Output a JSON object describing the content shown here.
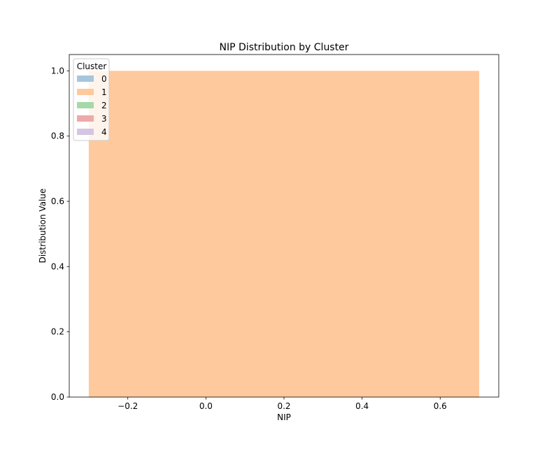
{
  "chart_data": {
    "type": "bar",
    "title": "NIP Distribution by Cluster",
    "xlabel": "NIP",
    "ylabel": "Distribution Value",
    "xlim": [
      -0.35,
      0.75
    ],
    "ylim": [
      0,
      1.05
    ],
    "xticks": [
      -0.2,
      0.0,
      0.2,
      0.4,
      0.6
    ],
    "xtick_labels": [
      "−0.2",
      "0.0",
      "0.2",
      "0.4",
      "0.6"
    ],
    "yticks": [
      0.0,
      0.2,
      0.4,
      0.6,
      0.8,
      1.0
    ],
    "ytick_labels": [
      "0.0",
      "0.2",
      "0.4",
      "0.6",
      "0.8",
      "1.0"
    ],
    "grid": false,
    "legend": {
      "title": "Cluster",
      "placement": "top-left"
    },
    "series": [
      {
        "name": "0",
        "color": "#a6c6df",
        "bars": []
      },
      {
        "name": "1",
        "color": "#ffc99e",
        "bars": [
          {
            "x0": -0.3,
            "x1": 0.7,
            "value": 1.0
          }
        ]
      },
      {
        "name": "2",
        "color": "#a5d9a5",
        "bars": []
      },
      {
        "name": "3",
        "color": "#eeaaaa",
        "bars": []
      },
      {
        "name": "4",
        "color": "#d5c5e3",
        "bars": []
      }
    ]
  }
}
